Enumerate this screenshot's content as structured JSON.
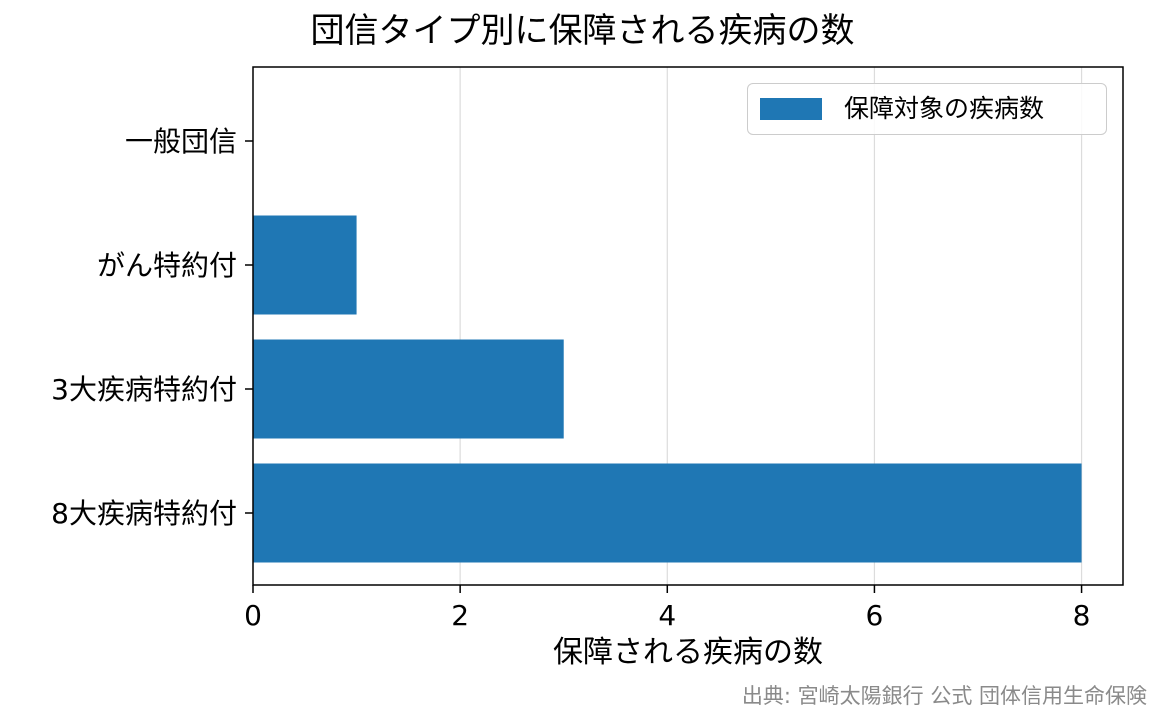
{
  "chart_data": {
    "type": "bar",
    "orientation": "horizontal",
    "title": "団信タイプ別に保障される疾病の数",
    "xlabel": "保障される疾病の数",
    "ylabel": "",
    "categories": [
      "一般団信",
      "がん特約付",
      "3大疾病特約付",
      "8大疾病特約付"
    ],
    "series": [
      {
        "name": "保障対象の疾病数",
        "values": [
          0,
          1,
          3,
          8
        ],
        "color": "#1f77b4"
      }
    ],
    "xlim": [
      0,
      8.4
    ],
    "xticks": [
      0,
      2,
      4,
      6,
      8
    ],
    "grid": "x",
    "legend_position": "top-right"
  },
  "source_note": "出典: 宮崎太陽銀行 公式 団体信用生命保険"
}
